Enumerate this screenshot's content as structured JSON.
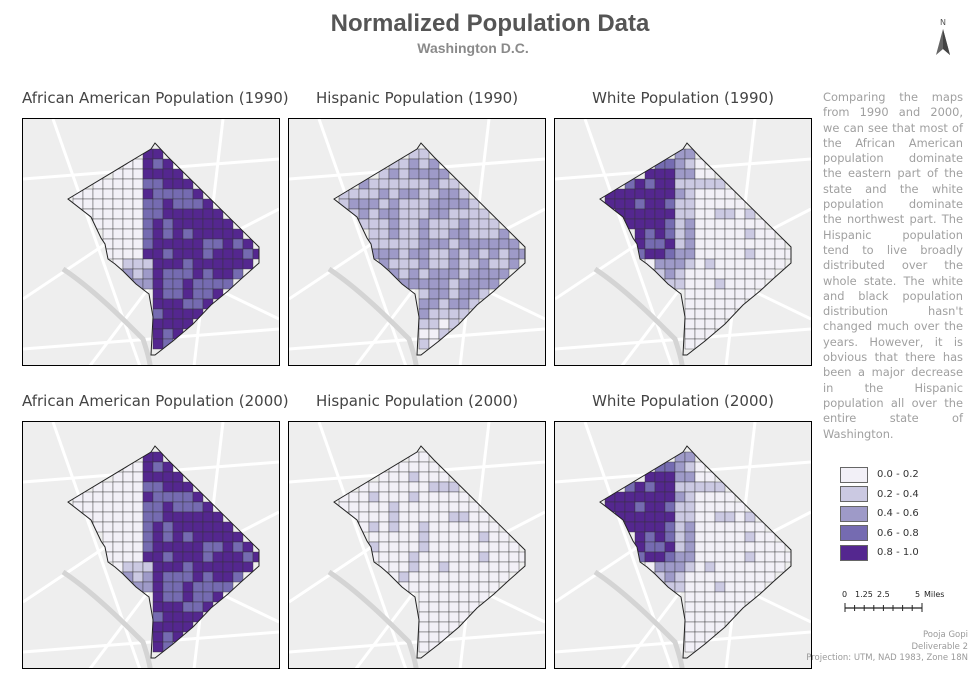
{
  "title": "Normalized Population Data",
  "subtitle": "Washington D.C.",
  "north_arrow": {
    "label": "N",
    "icon": "north-arrow-icon"
  },
  "maps": [
    {
      "title": "African American Population (1990)",
      "pattern": "aa1990"
    },
    {
      "title": "Hispanic Population (1990)",
      "pattern": "hisp1990"
    },
    {
      "title": "White Population (1990)",
      "pattern": "white1990"
    },
    {
      "title": "African American Population (2000)",
      "pattern": "aa2000"
    },
    {
      "title": "Hispanic Population (2000)",
      "pattern": "hisp2000"
    },
    {
      "title": "White Population (2000)",
      "pattern": "white2000"
    }
  ],
  "description": "Comparing the maps from 1990 and 2000, we can see that most of the African American population dominate the eastern part of the state and the white population dominate the northwest part. The Hispanic population tend to live broadly distributed over the whole state. The white and black population distribution hasn't changed much over the years. However, it is obvious that there has been a major decrease in the Hispanic population all over the entire state of Washington.",
  "legend": [
    {
      "label": "0.0 - 0.2",
      "color": "#f2f0f7"
    },
    {
      "label": "0.2 - 0.4",
      "color": "#cbc9e2"
    },
    {
      "label": "0.4 - 0.6",
      "color": "#9e9ac8"
    },
    {
      "label": "0.6 - 0.8",
      "color": "#756bb1"
    },
    {
      "label": "0.8 - 1.0",
      "color": "#54278f"
    }
  ],
  "scale": {
    "ticks": [
      "0",
      "1.25",
      "2.5",
      "5"
    ],
    "unit": "Miles"
  },
  "credits": {
    "author": "Pooja Gopi",
    "deliverable": "Deliverable 2",
    "projection": "Projection: UTM, NAD 1983, Zone 18N"
  }
}
